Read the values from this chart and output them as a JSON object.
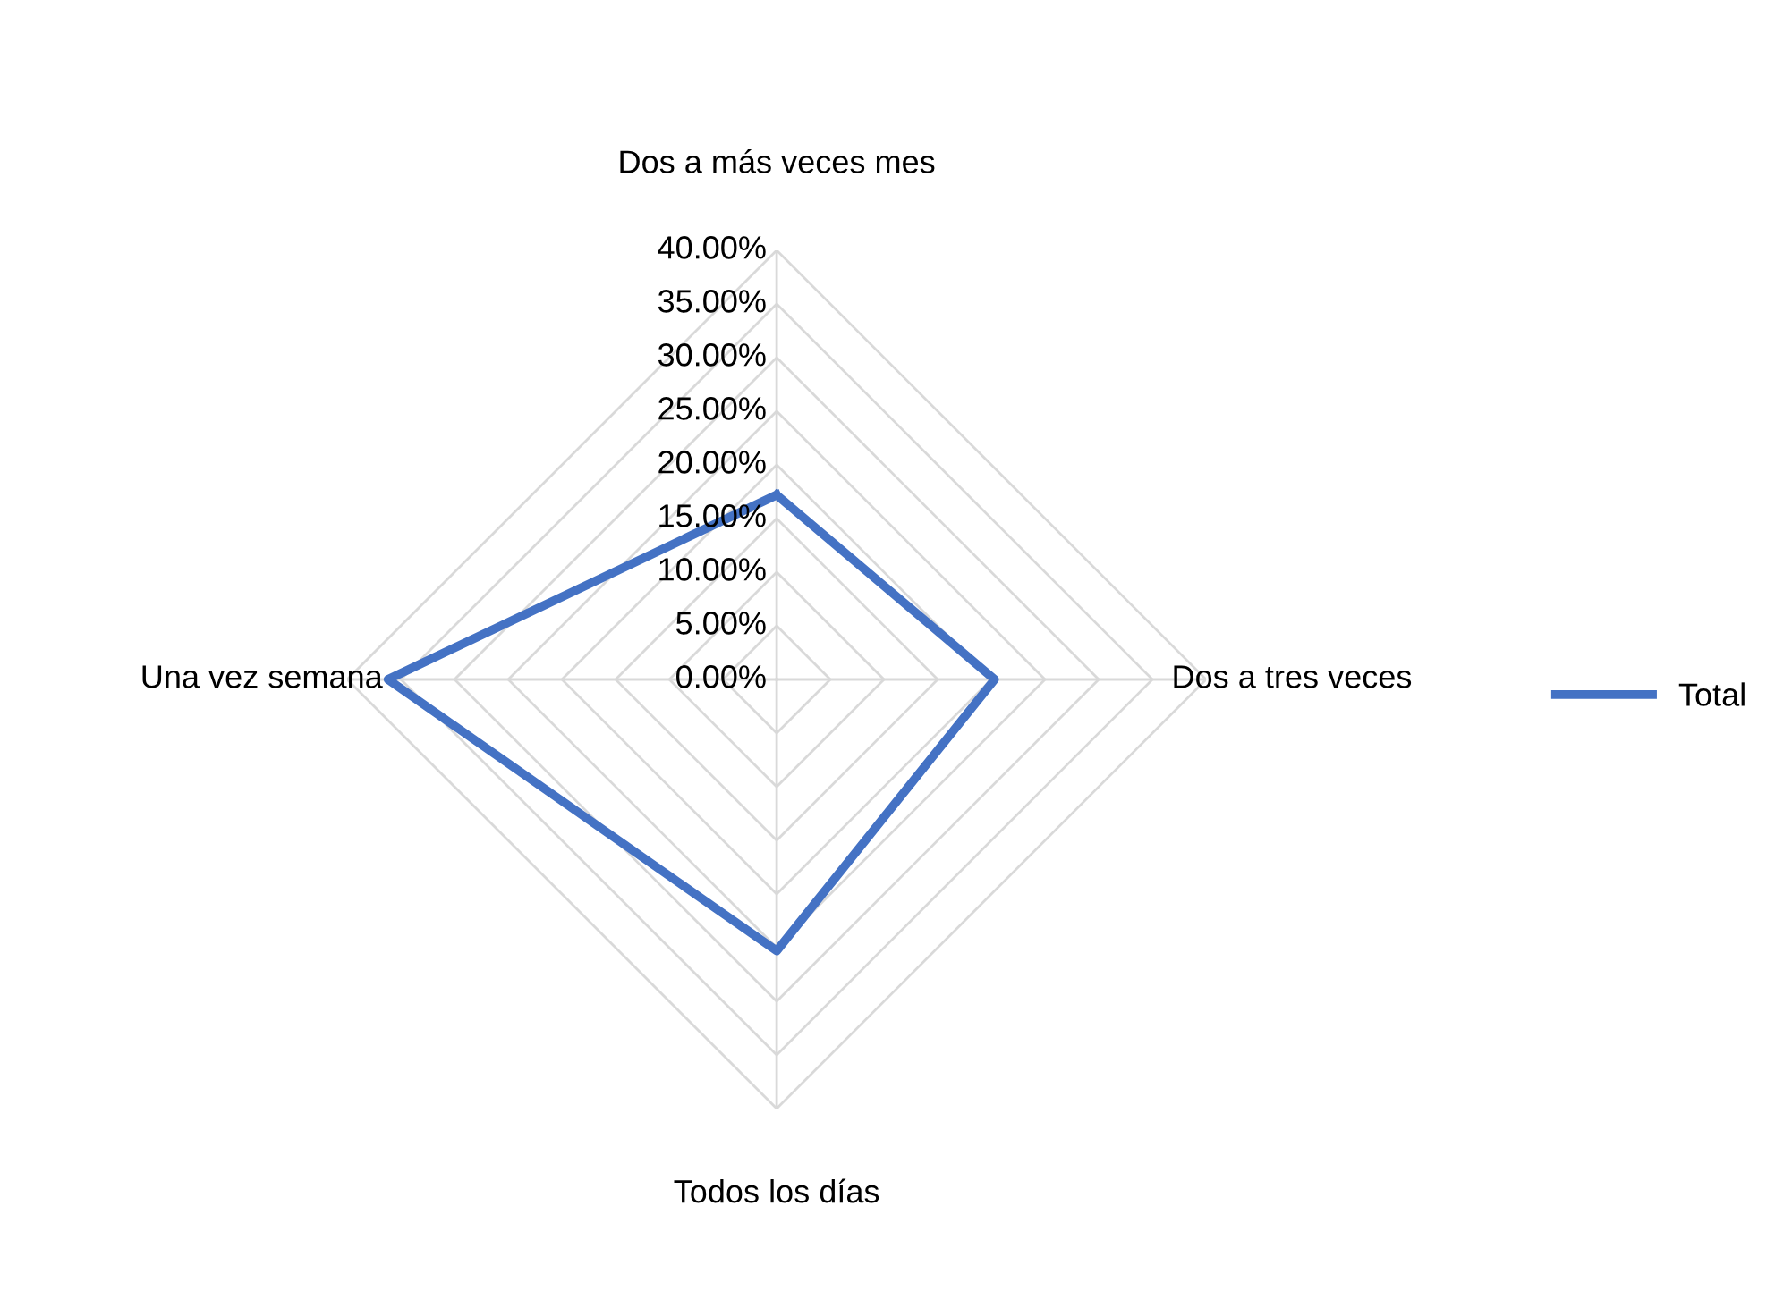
{
  "chart_data": {
    "type": "radar",
    "categories": [
      "Dos a más veces mes",
      "Dos a tres veces",
      "Todos los días",
      "Una vez semana"
    ],
    "series": [
      {
        "name": "Total",
        "color": "#4472c4",
        "values": [
          17.2,
          20.3,
          25.3,
          36.2
        ]
      }
    ],
    "ylim": [
      0,
      40
    ],
    "yticks": [
      {
        "value": 0,
        "label": "0.00%"
      },
      {
        "value": 5,
        "label": "5.00%"
      },
      {
        "value": 10,
        "label": "10.00%"
      },
      {
        "value": 15,
        "label": "15.00%"
      },
      {
        "value": 20,
        "label": "20.00%"
      },
      {
        "value": 25,
        "label": "25.00%"
      },
      {
        "value": 30,
        "label": "30.00%"
      },
      {
        "value": 35,
        "label": "35.00%"
      },
      {
        "value": 40,
        "label": "40.00%"
      }
    ],
    "grid": true,
    "legend": "right",
    "marker": "none",
    "line_style": "solid"
  }
}
